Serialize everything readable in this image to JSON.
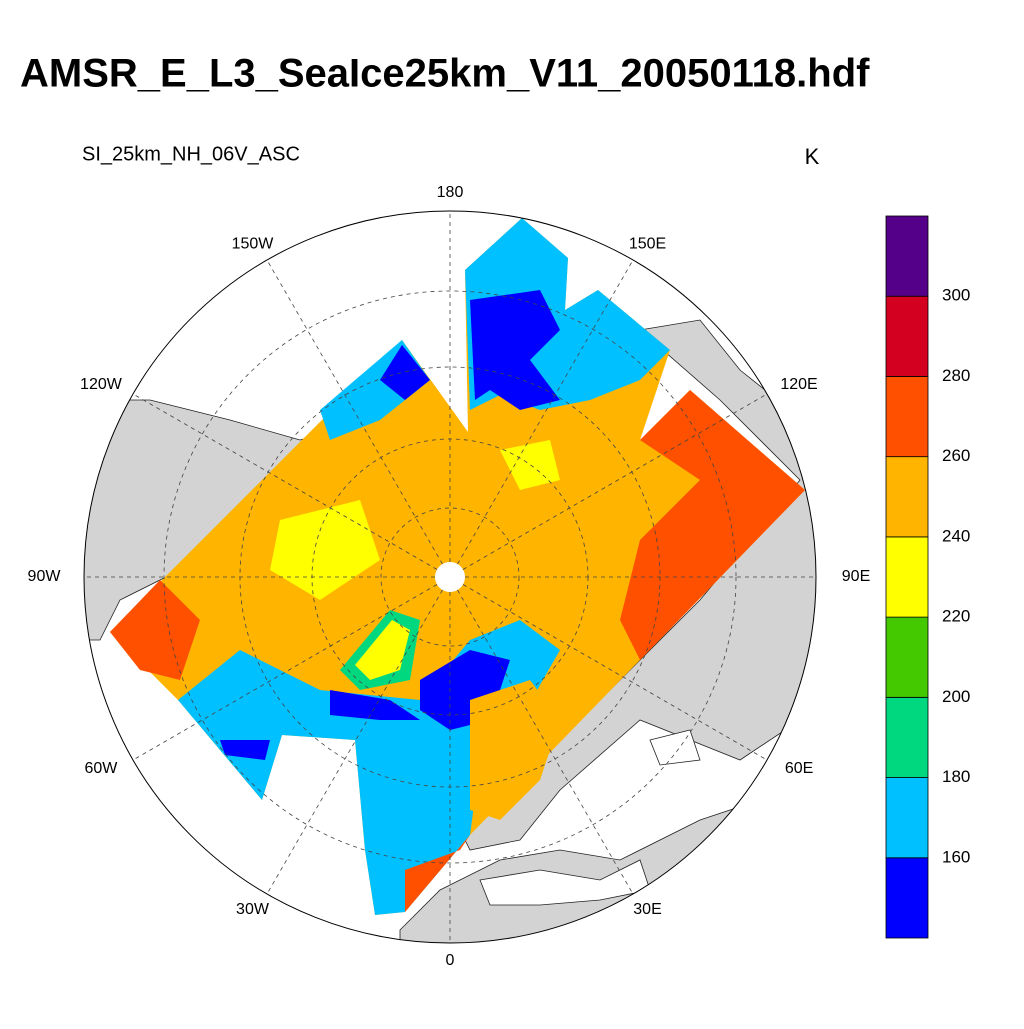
{
  "title": "AMSR_E_L3_SeaIce25km_V11_20050118.hdf",
  "subtitle": "SI_25km_NH_06V_ASC",
  "units": "K",
  "lon_labels": [
    {
      "value": 180,
      "label": "180"
    },
    {
      "value": 150,
      "label": "150E"
    },
    {
      "value": 120,
      "label": "120E"
    },
    {
      "value": 90,
      "label": "90E"
    },
    {
      "value": 60,
      "label": "60E"
    },
    {
      "value": 30,
      "label": "30E"
    },
    {
      "value": 0,
      "label": "0"
    },
    {
      "value": -30,
      "label": "30W"
    },
    {
      "value": -60,
      "label": "60W"
    },
    {
      "value": -90,
      "label": "90W"
    },
    {
      "value": -120,
      "label": "120W"
    },
    {
      "value": -150,
      "label": "150W"
    }
  ],
  "colorbar": {
    "levels": [
      160,
      180,
      200,
      220,
      240,
      260,
      280,
      300
    ],
    "colors": [
      "#0000ff",
      "#00c0ff",
      "#00d880",
      "#44c800",
      "#ffff00",
      "#ffb400",
      "#ff5000",
      "#d40020",
      "#550088"
    ]
  }
}
